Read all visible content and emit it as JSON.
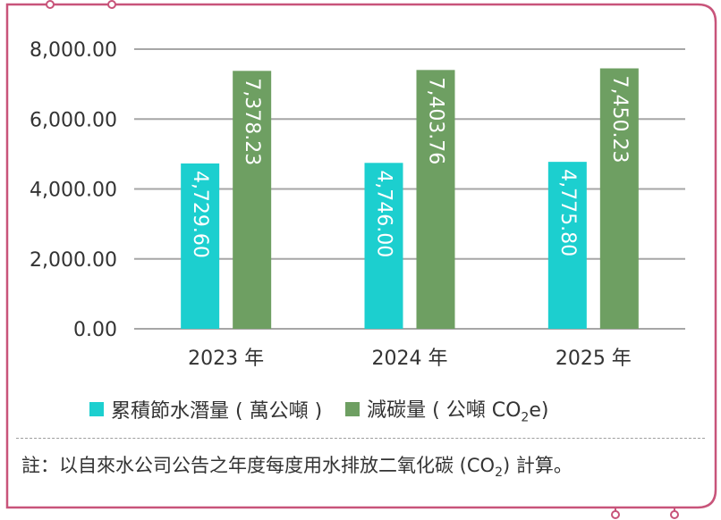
{
  "chart_data": {
    "type": "bar",
    "categories": [
      "2023 年",
      "2024 年",
      "2025 年"
    ],
    "series": [
      {
        "name": "累積節水潛量 ( 萬公噸 )",
        "values": [
          4729.6,
          4746.0,
          4775.8
        ],
        "labels": [
          "4,729.60",
          "4,746.00",
          "4,775.80"
        ],
        "color": "#1ccfcf"
      },
      {
        "name": "減碳量 ( 公噸 CO2e)",
        "values": [
          7378.23,
          7403.76,
          7450.23
        ],
        "labels": [
          "7,378.23",
          "7,403.76",
          "7,450.23"
        ],
        "color": "#6e9f62"
      }
    ],
    "yticks": [
      "0.00",
      "2,000.00",
      "4,000.00",
      "6,000.00",
      "8,000.00"
    ],
    "ylim": [
      0,
      8000
    ],
    "grid": true,
    "legend_position": "bottom"
  },
  "legend": {
    "items": [
      {
        "text": "累積節水潛量 ( 萬公噸 )",
        "color": "#1ccfcf"
      },
      {
        "pre": "減碳量 ( 公噸 CO",
        "sub": "2",
        "post": "e)",
        "color": "#6e9f62"
      }
    ]
  },
  "note": {
    "pre": "註：以自來水公司公告之年度每度用水排放二氧化碳 (CO",
    "sub": "2",
    "post": ") 計算。"
  },
  "colors": {
    "frame": "#c8547a",
    "grid": "#a6a6a6",
    "text": "#333333"
  }
}
